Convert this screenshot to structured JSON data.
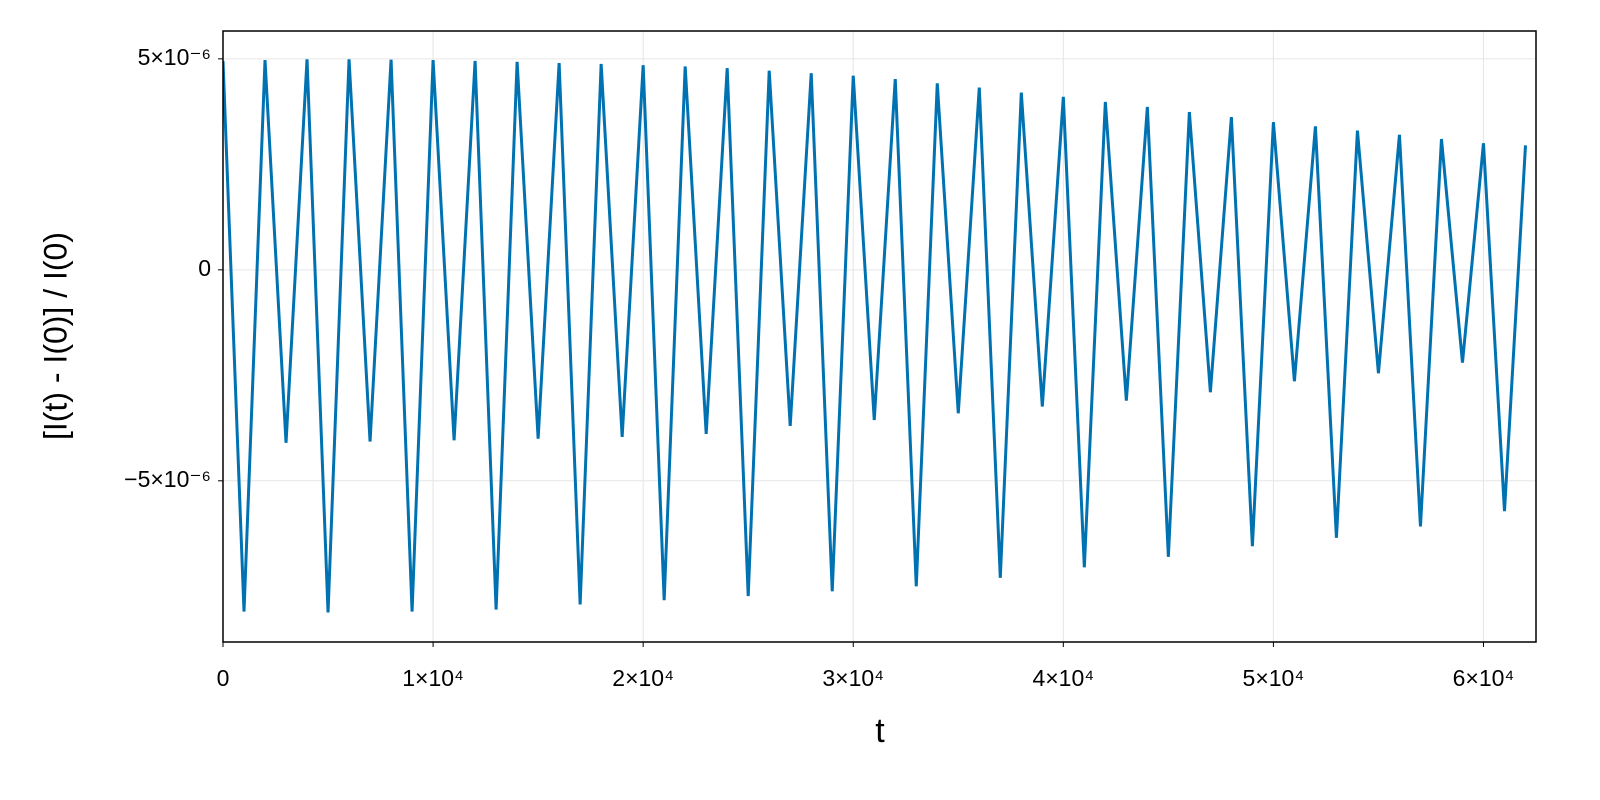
{
  "chart_data": {
    "type": "line",
    "x_label": "t",
    "y_label": "[I(t) - I(0)] / I(0)",
    "x": [
      0,
      1000,
      2000,
      3000,
      4000,
      5000,
      6000,
      7000,
      8000,
      9000,
      10000,
      11000,
      12000,
      13000,
      14000,
      15000,
      16000,
      17000,
      18000,
      19000,
      20000,
      21000,
      22000,
      23000,
      24000,
      25000,
      26000,
      27000,
      28000,
      29000,
      30000,
      31000,
      32000,
      33000,
      34000,
      35000,
      36000,
      37000,
      38000,
      39000,
      40000,
      41000,
      42000,
      43000,
      44000,
      45000,
      46000,
      47000,
      48000,
      49000,
      50000,
      51000,
      52000,
      53000,
      54000,
      55000,
      56000,
      57000,
      58000,
      59000,
      60000,
      61000,
      62000
    ],
    "series": [
      {
        "color": "#0072b2",
        "values": [
          4.95e-06,
          -8.1e-06,
          4.97e-06,
          -4.1e-06,
          4.99e-06,
          -8.12e-06,
          4.99e-06,
          -4.07e-06,
          4.98e-06,
          -8.1e-06,
          4.97e-06,
          -4.04e-06,
          4.95e-06,
          -8.05e-06,
          4.93e-06,
          -4e-06,
          4.9e-06,
          -7.93e-06,
          4.88e-06,
          -3.96e-06,
          4.85e-06,
          -7.83e-06,
          4.82e-06,
          -3.89e-06,
          4.78e-06,
          -7.73e-06,
          4.72e-06,
          -3.7e-06,
          4.66e-06,
          -7.62e-06,
          4.6e-06,
          -3.56e-06,
          4.52e-06,
          -7.5e-06,
          4.42e-06,
          -3.4e-06,
          4.32e-06,
          -7.3e-06,
          4.2e-06,
          -3.24e-06,
          4.1e-06,
          -7.05e-06,
          3.98e-06,
          -3.1e-06,
          3.86e-06,
          -6.8e-06,
          3.74e-06,
          -2.9e-06,
          3.62e-06,
          -6.55e-06,
          3.5e-06,
          -2.64e-06,
          3.4e-06,
          -6.35e-06,
          3.3e-06,
          -2.45e-06,
          3.2e-06,
          -6.08e-06,
          3.1e-06,
          -2.2e-06,
          3e-06,
          -5.72e-06,
          2.95e-06
        ]
      }
    ],
    "xlim": [
      0,
      62500
    ],
    "ylim": [
      -8.82e-06,
      5.66e-06
    ],
    "xticks": [
      0,
      {
        "value": 10000,
        "label": "1×10⁴"
      },
      {
        "value": 20000,
        "label": "2×10⁴"
      },
      {
        "value": 30000,
        "label": "3×10⁴"
      },
      {
        "value": 40000,
        "label": "4×10⁴"
      },
      {
        "value": 50000,
        "label": "5×10⁴"
      },
      {
        "value": 60000,
        "label": "6×10⁴"
      }
    ],
    "yticks": [
      {
        "value": -5e-06,
        "label": "−5×10⁻⁶"
      },
      0,
      {
        "value": 5e-06,
        "label": "5×10⁻⁶"
      }
    ],
    "grid": true
  }
}
